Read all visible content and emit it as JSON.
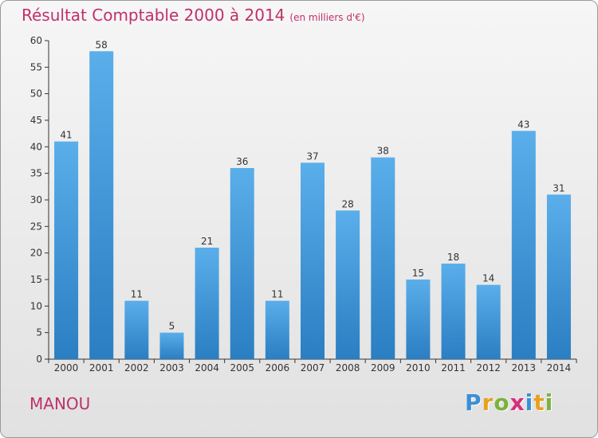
{
  "title": "Résultat Comptable 2000 à 2014",
  "unit": "(en milliers d'€)",
  "commune": "MANOU",
  "logo": {
    "letters": [
      "P",
      "r",
      "o",
      "x",
      "i",
      "t",
      "i"
    ],
    "colors": [
      "#3a8fd6",
      "#e8a020",
      "#7ab23c",
      "#d6307a",
      "#3a8fd6",
      "#e8a020",
      "#7ab23c"
    ]
  },
  "colors": {
    "bar_top": "#5aaeea",
    "bar_bottom": "#2a7ec2",
    "title": "#c0306b",
    "axis": "#333333"
  },
  "chart_data": {
    "type": "bar",
    "title": "Résultat Comptable 2000 à 2014",
    "xlabel": "",
    "ylabel": "(en milliers d'€)",
    "categories": [
      "2000",
      "2001",
      "2002",
      "2003",
      "2004",
      "2005",
      "2006",
      "2007",
      "2008",
      "2009",
      "2010",
      "2011",
      "2012",
      "2013",
      "2014"
    ],
    "values": [
      41,
      58,
      11,
      5,
      21,
      36,
      11,
      37,
      28,
      38,
      15,
      18,
      14,
      43,
      31
    ],
    "ylim": [
      0,
      60
    ],
    "yticks": [
      0,
      5,
      10,
      15,
      20,
      25,
      30,
      35,
      40,
      45,
      50,
      55,
      60
    ],
    "grid": false,
    "legend": "none"
  }
}
